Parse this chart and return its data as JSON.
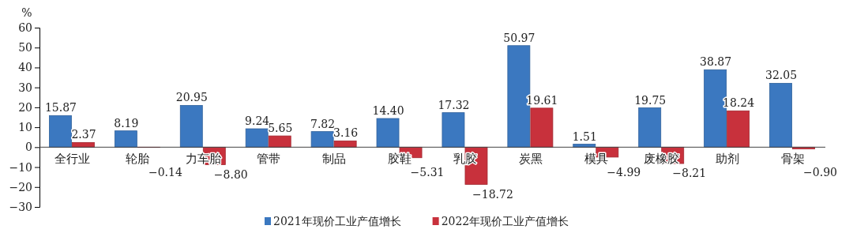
{
  "chart_data": {
    "type": "bar",
    "ylabel": "%",
    "categories": [
      "全行业",
      "轮胎",
      "力车胎",
      "管带",
      "制品",
      "胶鞋",
      "乳胶",
      "炭黑",
      "模具",
      "废橡胶",
      "助剂",
      "骨架"
    ],
    "series": [
      {
        "name": "2021年现价工业产值增长",
        "color": "#3b78c0",
        "values": [
          15.87,
          8.19,
          20.95,
          9.24,
          7.82,
          14.4,
          17.32,
          50.97,
          1.51,
          19.75,
          38.87,
          32.05
        ],
        "value_labels": [
          "15.87",
          "8.19",
          "20.95",
          "9.24",
          "7.82",
          "14.40",
          "17.32",
          "50.97",
          "1.51",
          "19.75",
          "38.87",
          "32.05"
        ]
      },
      {
        "name": "2022年现价工业产值增长",
        "color": "#c8313c",
        "values": [
          2.37,
          -0.14,
          -8.8,
          5.65,
          3.16,
          -5.31,
          -18.72,
          19.61,
          -4.99,
          -8.21,
          18.24,
          -0.9
        ],
        "value_labels": [
          "2.37",
          "−0.14",
          "−8.80",
          "5.65",
          "3.16",
          "−5.31",
          "−18.72",
          "19.61",
          "−4.99",
          "−8.21",
          "18.24",
          "−0.90"
        ]
      }
    ],
    "ylim": [
      -30,
      60
    ],
    "yticks": [
      -30,
      -20,
      -10,
      0,
      10,
      20,
      30,
      40,
      50,
      60
    ],
    "grid": false,
    "legend": "bottom"
  }
}
